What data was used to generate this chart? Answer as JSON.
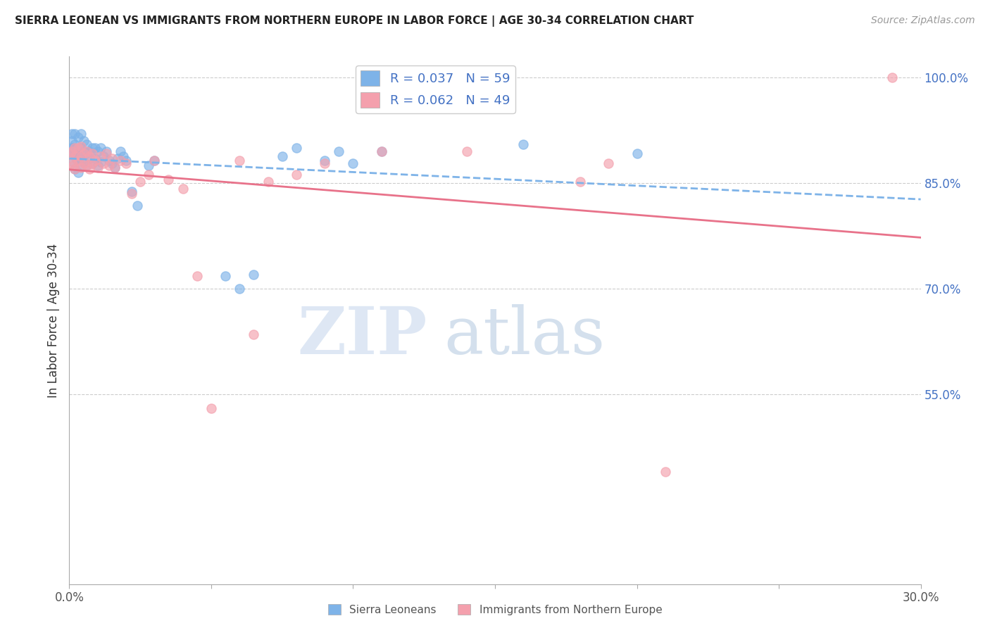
{
  "title": "SIERRA LEONEAN VS IMMIGRANTS FROM NORTHERN EUROPE IN LABOR FORCE | AGE 30-34 CORRELATION CHART",
  "source": "Source: ZipAtlas.com",
  "ylabel": "In Labor Force | Age 30-34",
  "xlim": [
    0.0,
    0.3
  ],
  "ylim": [
    0.28,
    1.03
  ],
  "xticks": [
    0.0,
    0.05,
    0.1,
    0.15,
    0.2,
    0.25,
    0.3
  ],
  "xticklabels": [
    "0.0%",
    "",
    "",
    "",
    "",
    "",
    "30.0%"
  ],
  "yticks_right": [
    0.55,
    0.7,
    0.85,
    1.0
  ],
  "ytick_right_labels": [
    "55.0%",
    "70.0%",
    "85.0%",
    "100.0%"
  ],
  "blue_color": "#7EB3E8",
  "pink_color": "#F4A0AD",
  "pink_line_color": "#E8728A",
  "blue_R": 0.037,
  "blue_N": 59,
  "pink_R": 0.062,
  "pink_N": 49,
  "watermark_ZIP": "ZIP",
  "watermark_atlas": "atlas",
  "legend_label_blue": "Sierra Leoneans",
  "legend_label_pink": "Immigrants from Northern Europe",
  "blue_scatter_x": [
    0.0005,
    0.001,
    0.001,
    0.001,
    0.0015,
    0.0015,
    0.002,
    0.002,
    0.002,
    0.002,
    0.0025,
    0.003,
    0.003,
    0.003,
    0.003,
    0.004,
    0.004,
    0.004,
    0.004,
    0.005,
    0.005,
    0.005,
    0.006,
    0.006,
    0.006,
    0.007,
    0.007,
    0.008,
    0.008,
    0.009,
    0.009,
    0.01,
    0.01,
    0.011,
    0.011,
    0.012,
    0.013,
    0.014,
    0.015,
    0.016,
    0.017,
    0.018,
    0.019,
    0.02,
    0.022,
    0.024,
    0.028,
    0.03,
    0.055,
    0.06,
    0.065,
    0.075,
    0.08,
    0.09,
    0.095,
    0.1,
    0.11,
    0.16,
    0.2
  ],
  "blue_scatter_y": [
    0.895,
    0.9,
    0.91,
    0.92,
    0.88,
    0.9,
    0.87,
    0.89,
    0.905,
    0.92,
    0.885,
    0.865,
    0.885,
    0.9,
    0.915,
    0.875,
    0.89,
    0.9,
    0.92,
    0.88,
    0.895,
    0.91,
    0.875,
    0.892,
    0.905,
    0.885,
    0.895,
    0.878,
    0.9,
    0.885,
    0.9,
    0.875,
    0.895,
    0.88,
    0.9,
    0.888,
    0.895,
    0.882,
    0.878,
    0.872,
    0.885,
    0.895,
    0.888,
    0.882,
    0.838,
    0.818,
    0.875,
    0.882,
    0.718,
    0.7,
    0.72,
    0.888,
    0.9,
    0.882,
    0.895,
    0.878,
    0.895,
    0.905,
    0.892
  ],
  "pink_scatter_x": [
    0.0005,
    0.001,
    0.001,
    0.0015,
    0.002,
    0.002,
    0.002,
    0.003,
    0.003,
    0.004,
    0.004,
    0.004,
    0.005,
    0.005,
    0.006,
    0.006,
    0.007,
    0.007,
    0.008,
    0.008,
    0.009,
    0.01,
    0.011,
    0.012,
    0.013,
    0.014,
    0.015,
    0.016,
    0.018,
    0.02,
    0.022,
    0.025,
    0.028,
    0.03,
    0.035,
    0.04,
    0.045,
    0.05,
    0.06,
    0.065,
    0.07,
    0.08,
    0.09,
    0.11,
    0.14,
    0.18,
    0.19,
    0.21,
    0.29
  ],
  "pink_scatter_y": [
    0.892,
    0.878,
    0.895,
    0.875,
    0.87,
    0.888,
    0.9,
    0.882,
    0.9,
    0.872,
    0.888,
    0.902,
    0.878,
    0.892,
    0.875,
    0.895,
    0.87,
    0.888,
    0.878,
    0.892,
    0.882,
    0.872,
    0.888,
    0.878,
    0.892,
    0.875,
    0.885,
    0.872,
    0.882,
    0.878,
    0.835,
    0.852,
    0.862,
    0.882,
    0.855,
    0.842,
    0.718,
    0.53,
    0.882,
    0.635,
    0.852,
    0.862,
    0.878,
    0.895,
    0.895,
    0.852,
    0.878,
    0.44,
    1.0
  ]
}
